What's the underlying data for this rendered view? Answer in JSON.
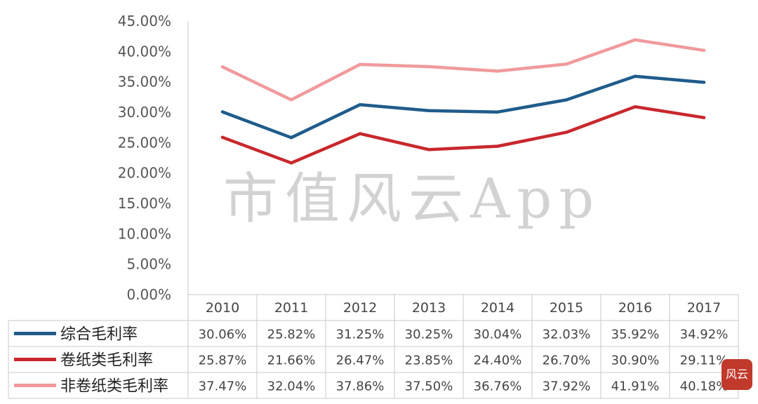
{
  "watermark": "市值风云App",
  "seal_text": "风云",
  "chart_data": {
    "type": "line",
    "title": "",
    "xlabel": "",
    "ylabel": "",
    "ylim": [
      0,
      45
    ],
    "y_ticks": [
      "0.00%",
      "5.00%",
      "10.00%",
      "15.00%",
      "20.00%",
      "25.00%",
      "30.00%",
      "35.00%",
      "40.00%",
      "45.00%"
    ],
    "categories": [
      "2010",
      "2011",
      "2012",
      "2013",
      "2014",
      "2015",
      "2016",
      "2017"
    ],
    "legend_placement": "bottom data table",
    "grid": false,
    "series": [
      {
        "name": "综合毛利率",
        "color": "#1f5c8b",
        "values": [
          30.06,
          25.82,
          31.25,
          30.25,
          30.04,
          32.03,
          35.92,
          34.92
        ],
        "labels": [
          "30.06%",
          "25.82%",
          "31.25%",
          "30.25%",
          "30.04%",
          "32.03%",
          "35.92%",
          "34.92%"
        ]
      },
      {
        "name": "卷纸类毛利率",
        "color": "#c8282d",
        "values": [
          25.87,
          21.66,
          26.47,
          23.85,
          24.4,
          26.7,
          30.9,
          29.11
        ],
        "labels": [
          "25.87%",
          "21.66%",
          "26.47%",
          "23.85%",
          "24.40%",
          "26.70%",
          "30.90%",
          "29.11%"
        ]
      },
      {
        "name": "非卷纸类毛利率",
        "color": "#f09a9c",
        "values": [
          37.47,
          32.04,
          37.86,
          37.5,
          36.76,
          37.92,
          41.91,
          40.18
        ],
        "labels": [
          "37.47%",
          "32.04%",
          "37.86%",
          "37.50%",
          "36.76%",
          "37.92%",
          "41.91%",
          "40.18%"
        ]
      }
    ]
  }
}
